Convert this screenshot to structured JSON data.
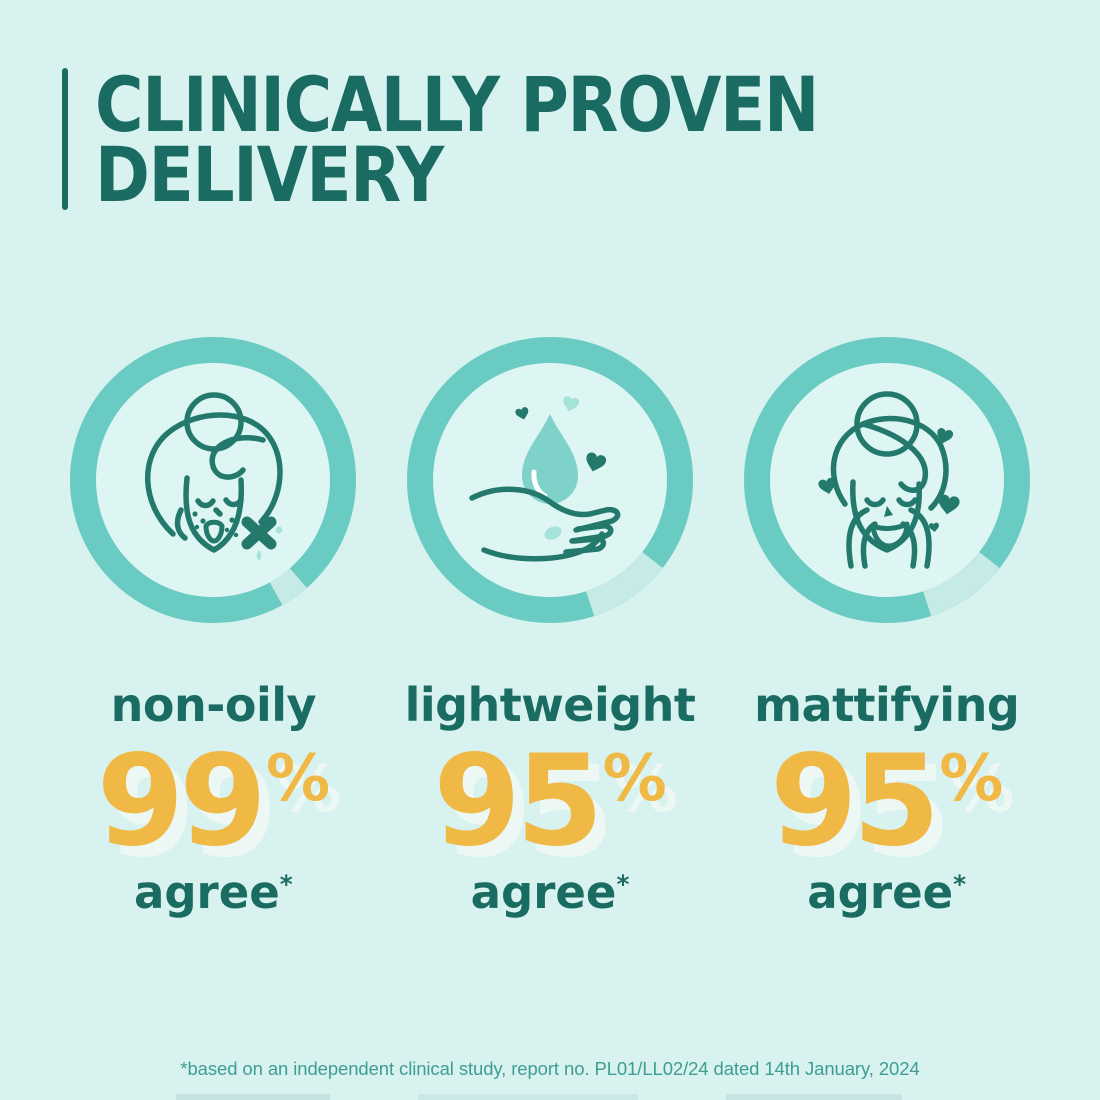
{
  "theme": {
    "background": "#d7f2ef",
    "title_teal": "#1a6b62",
    "ring_teal": "#69cbc2",
    "ring_gap": "#c6ebe6",
    "inner_circle": "#def6f3",
    "icon_stroke": "#24796d",
    "icon_fill": "#7fd2c9",
    "icon_fill_light": "#a5e2da",
    "number_yellow": "#f0b845",
    "number_shadow": "#edf8f5",
    "footnote_teal": "#3f9d94"
  },
  "header": {
    "title_line1": "CLINICALLY PROVEN",
    "title_line2": "DELIVERY"
  },
  "stats": {
    "items": [
      {
        "icon": "blemish-free-face-icon",
        "label": "non-oily",
        "percent": 99,
        "unit": "%",
        "ring_gap_deg": 12,
        "note": "agree",
        "note_mark": "*"
      },
      {
        "icon": "hand-with-water-drop-icon",
        "label": "lightweight",
        "percent": 95,
        "unit": "%",
        "ring_gap_deg": 34,
        "note": "agree",
        "note_mark": "*"
      },
      {
        "icon": "pampered-face-icon",
        "label": "mattifying",
        "percent": 95,
        "unit": "%",
        "ring_gap_deg": 34,
        "note": "agree",
        "note_mark": "*"
      }
    ]
  },
  "footnote": "*based on an independent clinical study, report no. PL01/LL02/24 dated 14th January, 2024"
}
